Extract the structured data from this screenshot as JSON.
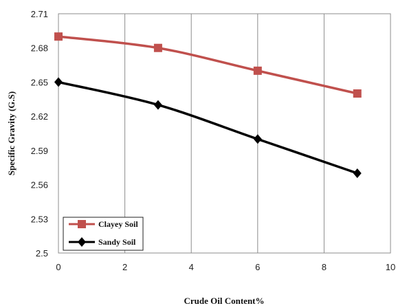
{
  "chart_data": {
    "type": "line",
    "xlabel": "Crude Oil Content%",
    "ylabel": "Specific Gravity (G.S)",
    "xlim": [
      0,
      10
    ],
    "ylim": [
      2.5,
      2.71
    ],
    "x_ticks": [
      "0",
      "2",
      "4",
      "6",
      "8",
      "10"
    ],
    "y_ticks": [
      "2.5",
      "2.53",
      "2.56",
      "2.59",
      "2.62",
      "2.65",
      "2.68",
      "2.71"
    ],
    "grid": "vertical",
    "legend_position": "bottom-left",
    "series": [
      {
        "name": "Clayey Soil",
        "color": "#c0504d",
        "marker": "square",
        "points": [
          {
            "x": 0,
            "y": 2.69
          },
          {
            "x": 3,
            "y": 2.68
          },
          {
            "x": 6,
            "y": 2.66
          },
          {
            "x": 9,
            "y": 2.64
          }
        ]
      },
      {
        "name": "Sandy Soil",
        "color": "#000000",
        "marker": "diamond",
        "points": [
          {
            "x": 0,
            "y": 2.65
          },
          {
            "x": 3,
            "y": 2.63
          },
          {
            "x": 6,
            "y": 2.6
          },
          {
            "x": 9,
            "y": 2.57
          }
        ]
      }
    ]
  }
}
